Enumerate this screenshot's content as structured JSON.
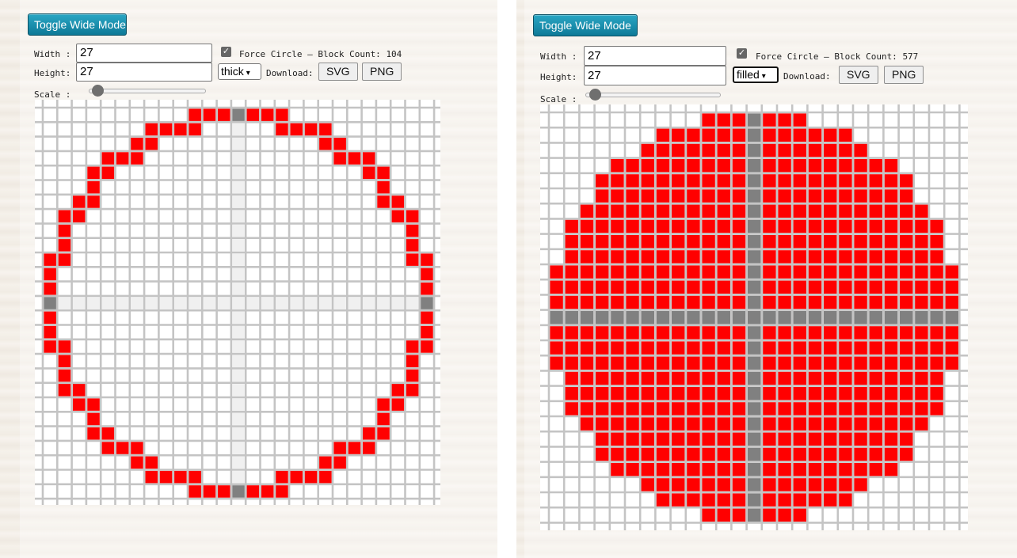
{
  "panels": [
    {
      "toggle_label": "Toggle Wide Mode",
      "width_label": "Width :",
      "width_value": "27",
      "height_label": "Height:",
      "height_value": "27",
      "force_circle_label": "Force Circle — Block Count:",
      "block_count": "104",
      "mode": "thick",
      "download_label": "Download:",
      "svg_label": "SVG",
      "png_label": "PNG",
      "scale_label": "Scale :",
      "scale_level": 0.03
    },
    {
      "toggle_label": "Toggle Wide Mode",
      "width_label": "Width :",
      "width_value": "27",
      "height_label": "Height:",
      "height_value": "27",
      "force_circle_label": "Force Circle — Block Count:",
      "block_count": "577",
      "mode": "filled",
      "download_label": "Download:",
      "svg_label": "SVG",
      "png_label": "PNG",
      "scale_label": "Scale :",
      "scale_level": 0.03
    }
  ],
  "colors": {
    "filled_block": "#ff0000",
    "center_block": "#808080",
    "empty_block": "#ffffff",
    "center_guide": "#f0f0f0",
    "grid_line": "#c4c4c4",
    "button_accent": "#138aa8"
  }
}
